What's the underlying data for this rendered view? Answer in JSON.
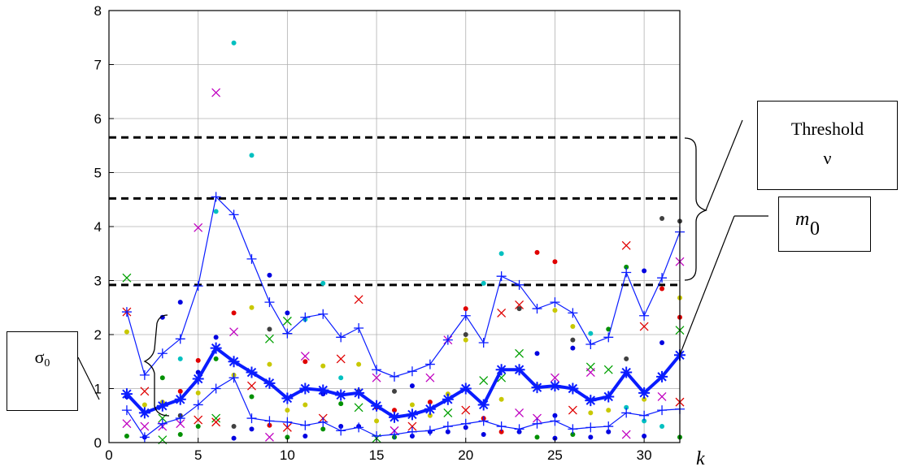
{
  "chart_data": {
    "type": "scatter",
    "title": "",
    "xlabel": "k",
    "ylabel": "",
    "xlim": [
      0,
      32
    ],
    "ylim": [
      0,
      8
    ],
    "xticks": [
      "0",
      "5",
      "10",
      "15",
      "20",
      "25",
      "30"
    ],
    "yticks": [
      "0",
      "1",
      "2",
      "3",
      "4",
      "5",
      "6",
      "7",
      "8"
    ],
    "grid": true,
    "thresholds": [
      5.65,
      4.52,
      2.92
    ],
    "series": [
      {
        "style": "bold-blue-asterisk",
        "x": [
          1,
          2,
          3,
          4,
          5,
          6,
          7,
          8,
          9,
          10,
          11,
          12,
          13,
          14,
          15,
          16,
          17,
          18,
          19,
          20,
          21,
          22,
          23,
          24,
          25,
          26,
          27,
          28,
          29,
          30,
          31,
          32
        ],
        "values": [
          0.9,
          0.55,
          0.68,
          0.8,
          1.18,
          1.75,
          1.5,
          1.3,
          1.1,
          0.82,
          1.0,
          0.97,
          0.88,
          0.92,
          0.68,
          0.47,
          0.52,
          0.62,
          0.8,
          1.0,
          0.7,
          1.35,
          1.35,
          1.02,
          1.05,
          1.0,
          0.78,
          0.85,
          1.3,
          0.92,
          1.22,
          1.62
        ]
      },
      {
        "style": "thin-blue-plus-upper",
        "x": [
          1,
          2,
          3,
          4,
          5,
          6,
          7,
          8,
          9,
          10,
          11,
          12,
          13,
          14,
          15,
          16,
          17,
          18,
          19,
          20,
          21,
          22,
          23,
          24,
          25,
          26,
          27,
          28,
          29,
          30,
          31,
          32
        ],
        "values": [
          2.42,
          1.25,
          1.65,
          1.92,
          2.9,
          4.55,
          4.22,
          3.4,
          2.6,
          2.02,
          2.32,
          2.38,
          1.95,
          2.12,
          1.35,
          1.22,
          1.32,
          1.45,
          1.9,
          2.35,
          1.85,
          3.08,
          2.92,
          2.48,
          2.6,
          2.4,
          1.82,
          1.95,
          3.15,
          2.35,
          3.05,
          3.9
        ]
      },
      {
        "style": "thin-blue-plus-lower",
        "x": [
          1,
          2,
          3,
          4,
          5,
          6,
          7,
          8,
          9,
          10,
          11,
          12,
          13,
          14,
          15,
          16,
          17,
          18,
          19,
          20,
          21,
          22,
          23,
          24,
          25,
          26,
          27,
          28,
          29,
          30,
          31,
          32
        ],
        "values": [
          0.6,
          0.1,
          0.35,
          0.45,
          0.7,
          1.0,
          1.2,
          0.45,
          0.4,
          0.38,
          0.32,
          0.38,
          0.22,
          0.28,
          0.12,
          0.15,
          0.2,
          0.22,
          0.3,
          0.35,
          0.4,
          0.3,
          0.25,
          0.35,
          0.4,
          0.25,
          0.28,
          0.3,
          0.55,
          0.5,
          0.6,
          0.62
        ]
      }
    ],
    "scatter_points": [
      {
        "x": 1,
        "y": 3.05,
        "m": "x",
        "c": "#00a000"
      },
      {
        "x": 1,
        "y": 2.42,
        "m": "x",
        "c": "#e00000"
      },
      {
        "x": 1,
        "y": 2.05,
        "m": "d",
        "c": "#c8c800"
      },
      {
        "x": 1,
        "y": 0.85,
        "m": "d",
        "c": "#0000e0"
      },
      {
        "x": 1,
        "y": 0.35,
        "m": "x",
        "c": "#c000c0"
      },
      {
        "x": 1,
        "y": 0.12,
        "m": "d",
        "c": "#009000"
      },
      {
        "x": 2,
        "y": 0.95,
        "m": "x",
        "c": "#e00000"
      },
      {
        "x": 2,
        "y": 0.7,
        "m": "d",
        "c": "#c8c800"
      },
      {
        "x": 2,
        "y": 0.55,
        "m": "d",
        "c": "#404040"
      },
      {
        "x": 2,
        "y": 0.3,
        "m": "x",
        "c": "#c000c0"
      },
      {
        "x": 2,
        "y": 0.1,
        "m": "d",
        "c": "#0000e0"
      },
      {
        "x": 3,
        "y": 2.32,
        "m": "d",
        "c": "#0000e0"
      },
      {
        "x": 3,
        "y": 1.2,
        "m": "d",
        "c": "#009000"
      },
      {
        "x": 3,
        "y": 0.75,
        "m": "d",
        "c": "#c8c800"
      },
      {
        "x": 3,
        "y": 0.45,
        "m": "x",
        "c": "#00a000"
      },
      {
        "x": 3,
        "y": 0.3,
        "m": "x",
        "c": "#c000c0"
      },
      {
        "x": 3,
        "y": 0.05,
        "m": "x",
        "c": "#00a000"
      },
      {
        "x": 4,
        "y": 2.6,
        "m": "d",
        "c": "#0000e0"
      },
      {
        "x": 4,
        "y": 1.55,
        "m": "d",
        "c": "#00c0c0"
      },
      {
        "x": 4,
        "y": 0.95,
        "m": "d",
        "c": "#e00000"
      },
      {
        "x": 4,
        "y": 0.5,
        "m": "d",
        "c": "#404040"
      },
      {
        "x": 4,
        "y": 0.35,
        "m": "x",
        "c": "#c000c0"
      },
      {
        "x": 4,
        "y": 0.15,
        "m": "d",
        "c": "#009000"
      },
      {
        "x": 5,
        "y": 3.98,
        "m": "x",
        "c": "#c000c0"
      },
      {
        "x": 5,
        "y": 1.52,
        "m": "d",
        "c": "#e00000"
      },
      {
        "x": 5,
        "y": 1.3,
        "m": "d",
        "c": "#0000e0"
      },
      {
        "x": 5,
        "y": 0.92,
        "m": "d",
        "c": "#c8c800"
      },
      {
        "x": 5,
        "y": 0.42,
        "m": "x",
        "c": "#e00000"
      },
      {
        "x": 5,
        "y": 0.3,
        "m": "d",
        "c": "#009000"
      },
      {
        "x": 6,
        "y": 6.48,
        "m": "x",
        "c": "#c000c0"
      },
      {
        "x": 6,
        "y": 4.28,
        "m": "d",
        "c": "#00c0c0"
      },
      {
        "x": 6,
        "y": 1.95,
        "m": "d",
        "c": "#0000e0"
      },
      {
        "x": 6,
        "y": 1.55,
        "m": "d",
        "c": "#009000"
      },
      {
        "x": 6,
        "y": 0.45,
        "m": "x",
        "c": "#00a000"
      },
      {
        "x": 6,
        "y": 0.38,
        "m": "x",
        "c": "#e00000"
      },
      {
        "x": 7,
        "y": 7.4,
        "m": "d",
        "c": "#00c0c0"
      },
      {
        "x": 7,
        "y": 2.4,
        "m": "d",
        "c": "#e00000"
      },
      {
        "x": 7,
        "y": 2.05,
        "m": "x",
        "c": "#c000c0"
      },
      {
        "x": 7,
        "y": 1.25,
        "m": "d",
        "c": "#c8c800"
      },
      {
        "x": 7,
        "y": 0.3,
        "m": "d",
        "c": "#404040"
      },
      {
        "x": 7,
        "y": 0.08,
        "m": "d",
        "c": "#0000e0"
      },
      {
        "x": 8,
        "y": 5.32,
        "m": "d",
        "c": "#00c0c0"
      },
      {
        "x": 8,
        "y": 2.5,
        "m": "d",
        "c": "#c8c800"
      },
      {
        "x": 8,
        "y": 1.05,
        "m": "x",
        "c": "#e00000"
      },
      {
        "x": 8,
        "y": 0.85,
        "m": "d",
        "c": "#009000"
      },
      {
        "x": 8,
        "y": 0.25,
        "m": "d",
        "c": "#0000e0"
      },
      {
        "x": 9,
        "y": 3.1,
        "m": "d",
        "c": "#0000e0"
      },
      {
        "x": 9,
        "y": 2.1,
        "m": "d",
        "c": "#404040"
      },
      {
        "x": 9,
        "y": 1.45,
        "m": "d",
        "c": "#c8c800"
      },
      {
        "x": 9,
        "y": 1.92,
        "m": "x",
        "c": "#00a000"
      },
      {
        "x": 9,
        "y": 0.32,
        "m": "d",
        "c": "#e00000"
      },
      {
        "x": 9,
        "y": 0.1,
        "m": "x",
        "c": "#c000c0"
      },
      {
        "x": 10,
        "y": 2.4,
        "m": "d",
        "c": "#0000e0"
      },
      {
        "x": 10,
        "y": 2.25,
        "m": "x",
        "c": "#00a000"
      },
      {
        "x": 10,
        "y": 0.6,
        "m": "d",
        "c": "#c8c800"
      },
      {
        "x": 10,
        "y": 0.28,
        "m": "x",
        "c": "#e00000"
      },
      {
        "x": 10,
        "y": 0.1,
        "m": "d",
        "c": "#009000"
      },
      {
        "x": 11,
        "y": 2.28,
        "m": "d",
        "c": "#00c0c0"
      },
      {
        "x": 11,
        "y": 1.6,
        "m": "x",
        "c": "#c000c0"
      },
      {
        "x": 11,
        "y": 1.5,
        "m": "d",
        "c": "#e00000"
      },
      {
        "x": 11,
        "y": 0.7,
        "m": "d",
        "c": "#c8c800"
      },
      {
        "x": 11,
        "y": 0.12,
        "m": "d",
        "c": "#0000e0"
      },
      {
        "x": 12,
        "y": 2.95,
        "m": "d",
        "c": "#00c0c0"
      },
      {
        "x": 12,
        "y": 1.42,
        "m": "d",
        "c": "#c8c800"
      },
      {
        "x": 12,
        "y": 0.9,
        "m": "d",
        "c": "#0000e0"
      },
      {
        "x": 12,
        "y": 0.45,
        "m": "x",
        "c": "#e00000"
      },
      {
        "x": 12,
        "y": 0.25,
        "m": "d",
        "c": "#009000"
      },
      {
        "x": 13,
        "y": 1.55,
        "m": "x",
        "c": "#e00000"
      },
      {
        "x": 13,
        "y": 1.2,
        "m": "d",
        "c": "#00c0c0"
      },
      {
        "x": 13,
        "y": 0.72,
        "m": "d",
        "c": "#009000"
      },
      {
        "x": 13,
        "y": 0.3,
        "m": "d",
        "c": "#0000e0"
      },
      {
        "x": 14,
        "y": 2.65,
        "m": "x",
        "c": "#e00000"
      },
      {
        "x": 14,
        "y": 1.45,
        "m": "d",
        "c": "#c8c800"
      },
      {
        "x": 14,
        "y": 0.95,
        "m": "d",
        "c": "#404040"
      },
      {
        "x": 14,
        "y": 0.65,
        "m": "x",
        "c": "#00a000"
      },
      {
        "x": 14,
        "y": 0.3,
        "m": "d",
        "c": "#0000e0"
      },
      {
        "x": 15,
        "y": 1.2,
        "m": "x",
        "c": "#c000c0"
      },
      {
        "x": 15,
        "y": 0.65,
        "m": "d",
        "c": "#e00000"
      },
      {
        "x": 15,
        "y": 0.4,
        "m": "d",
        "c": "#c8c800"
      },
      {
        "x": 15,
        "y": 0.08,
        "m": "x",
        "c": "#00a000"
      },
      {
        "x": 16,
        "y": 0.95,
        "m": "d",
        "c": "#404040"
      },
      {
        "x": 16,
        "y": 0.6,
        "m": "d",
        "c": "#e00000"
      },
      {
        "x": 16,
        "y": 0.22,
        "m": "x",
        "c": "#c000c0"
      },
      {
        "x": 16,
        "y": 0.1,
        "m": "d",
        "c": "#009000"
      },
      {
        "x": 17,
        "y": 1.05,
        "m": "d",
        "c": "#0000e0"
      },
      {
        "x": 17,
        "y": 0.7,
        "m": "d",
        "c": "#c8c800"
      },
      {
        "x": 17,
        "y": 0.3,
        "m": "x",
        "c": "#e00000"
      },
      {
        "x": 17,
        "y": 0.12,
        "m": "d",
        "c": "#0000e0"
      },
      {
        "x": 18,
        "y": 1.2,
        "m": "x",
        "c": "#c000c0"
      },
      {
        "x": 18,
        "y": 0.75,
        "m": "d",
        "c": "#e00000"
      },
      {
        "x": 18,
        "y": 0.5,
        "m": "d",
        "c": "#c8c800"
      },
      {
        "x": 18,
        "y": 0.2,
        "m": "d",
        "c": "#0000e0"
      },
      {
        "x": 19,
        "y": 1.9,
        "m": "x",
        "c": "#c000c0"
      },
      {
        "x": 19,
        "y": 0.9,
        "m": "d",
        "c": "#c8c800"
      },
      {
        "x": 19,
        "y": 0.55,
        "m": "x",
        "c": "#00a000"
      },
      {
        "x": 19,
        "y": 0.2,
        "m": "d",
        "c": "#0000e0"
      },
      {
        "x": 20,
        "y": 2.48,
        "m": "d",
        "c": "#e00000"
      },
      {
        "x": 20,
        "y": 2.0,
        "m": "d",
        "c": "#404040"
      },
      {
        "x": 20,
        "y": 1.9,
        "m": "d",
        "c": "#c8c800"
      },
      {
        "x": 20,
        "y": 0.6,
        "m": "x",
        "c": "#e00000"
      },
      {
        "x": 20,
        "y": 0.28,
        "m": "d",
        "c": "#0000e0"
      },
      {
        "x": 21,
        "y": 2.95,
        "m": "d",
        "c": "#00c0c0"
      },
      {
        "x": 21,
        "y": 1.15,
        "m": "x",
        "c": "#00a000"
      },
      {
        "x": 21,
        "y": 0.45,
        "m": "d",
        "c": "#e00000"
      },
      {
        "x": 21,
        "y": 0.15,
        "m": "d",
        "c": "#0000e0"
      },
      {
        "x": 22,
        "y": 3.5,
        "m": "d",
        "c": "#00c0c0"
      },
      {
        "x": 22,
        "y": 2.4,
        "m": "x",
        "c": "#e00000"
      },
      {
        "x": 22,
        "y": 1.2,
        "m": "x",
        "c": "#00a000"
      },
      {
        "x": 22,
        "y": 0.8,
        "m": "d",
        "c": "#c8c800"
      },
      {
        "x": 22,
        "y": 0.2,
        "m": "d",
        "c": "#e00000"
      },
      {
        "x": 23,
        "y": 2.55,
        "m": "x",
        "c": "#e00000"
      },
      {
        "x": 23,
        "y": 2.48,
        "m": "d",
        "c": "#404040"
      },
      {
        "x": 23,
        "y": 1.65,
        "m": "x",
        "c": "#00a000"
      },
      {
        "x": 23,
        "y": 0.55,
        "m": "x",
        "c": "#c000c0"
      },
      {
        "x": 23,
        "y": 0.2,
        "m": "d",
        "c": "#0000e0"
      },
      {
        "x": 24,
        "y": 3.52,
        "m": "d",
        "c": "#e00000"
      },
      {
        "x": 24,
        "y": 1.65,
        "m": "d",
        "c": "#0000e0"
      },
      {
        "x": 24,
        "y": 1.05,
        "m": "d",
        "c": "#c8c800"
      },
      {
        "x": 24,
        "y": 0.45,
        "m": "x",
        "c": "#c000c0"
      },
      {
        "x": 24,
        "y": 0.1,
        "m": "d",
        "c": "#009000"
      },
      {
        "x": 25,
        "y": 3.35,
        "m": "d",
        "c": "#e00000"
      },
      {
        "x": 25,
        "y": 2.45,
        "m": "d",
        "c": "#c8c800"
      },
      {
        "x": 25,
        "y": 1.2,
        "m": "x",
        "c": "#c000c0"
      },
      {
        "x": 25,
        "y": 0.5,
        "m": "d",
        "c": "#0000e0"
      },
      {
        "x": 25,
        "y": 0.08,
        "m": "d",
        "c": "#0000e0"
      },
      {
        "x": 26,
        "y": 2.15,
        "m": "d",
        "c": "#c8c800"
      },
      {
        "x": 26,
        "y": 1.9,
        "m": "d",
        "c": "#404040"
      },
      {
        "x": 26,
        "y": 1.75,
        "m": "d",
        "c": "#0000e0"
      },
      {
        "x": 26,
        "y": 0.6,
        "m": "x",
        "c": "#e00000"
      },
      {
        "x": 26,
        "y": 0.15,
        "m": "d",
        "c": "#009000"
      },
      {
        "x": 27,
        "y": 2.02,
        "m": "d",
        "c": "#00c0c0"
      },
      {
        "x": 27,
        "y": 1.4,
        "m": "x",
        "c": "#00a000"
      },
      {
        "x": 27,
        "y": 1.3,
        "m": "x",
        "c": "#c000c0"
      },
      {
        "x": 27,
        "y": 0.55,
        "m": "d",
        "c": "#c8c800"
      },
      {
        "x": 27,
        "y": 0.1,
        "m": "d",
        "c": "#0000e0"
      },
      {
        "x": 28,
        "y": 2.1,
        "m": "d",
        "c": "#009000"
      },
      {
        "x": 28,
        "y": 1.35,
        "m": "x",
        "c": "#00a000"
      },
      {
        "x": 28,
        "y": 0.6,
        "m": "d",
        "c": "#c8c800"
      },
      {
        "x": 28,
        "y": 0.2,
        "m": "d",
        "c": "#0000e0"
      },
      {
        "x": 29,
        "y": 3.65,
        "m": "x",
        "c": "#e00000"
      },
      {
        "x": 29,
        "y": 3.25,
        "m": "d",
        "c": "#009000"
      },
      {
        "x": 29,
        "y": 1.55,
        "m": "d",
        "c": "#404040"
      },
      {
        "x": 29,
        "y": 0.65,
        "m": "d",
        "c": "#00c0c0"
      },
      {
        "x": 29,
        "y": 0.15,
        "m": "x",
        "c": "#c000c0"
      },
      {
        "x": 30,
        "y": 3.18,
        "m": "d",
        "c": "#0000e0"
      },
      {
        "x": 30,
        "y": 2.15,
        "m": "x",
        "c": "#e00000"
      },
      {
        "x": 30,
        "y": 0.8,
        "m": "d",
        "c": "#c8c800"
      },
      {
        "x": 30,
        "y": 0.4,
        "m": "d",
        "c": "#00c0c0"
      },
      {
        "x": 30,
        "y": 0.12,
        "m": "d",
        "c": "#0000e0"
      },
      {
        "x": 31,
        "y": 4.15,
        "m": "d",
        "c": "#404040"
      },
      {
        "x": 31,
        "y": 2.85,
        "m": "d",
        "c": "#e00000"
      },
      {
        "x": 31,
        "y": 1.85,
        "m": "d",
        "c": "#0000e0"
      },
      {
        "x": 31,
        "y": 0.85,
        "m": "x",
        "c": "#c000c0"
      },
      {
        "x": 31,
        "y": 0.3,
        "m": "d",
        "c": "#00c0c0"
      },
      {
        "x": 32,
        "y": 4.1,
        "m": "d",
        "c": "#404040"
      },
      {
        "x": 32,
        "y": 3.35,
        "m": "x",
        "c": "#c000c0"
      },
      {
        "x": 32,
        "y": 2.68,
        "m": "d",
        "c": "#c8c800"
      },
      {
        "x": 32,
        "y": 2.32,
        "m": "d",
        "c": "#e00000"
      },
      {
        "x": 32,
        "y": 2.08,
        "m": "x",
        "c": "#00a000"
      },
      {
        "x": 32,
        "y": 0.75,
        "m": "x",
        "c": "#e00000"
      },
      {
        "x": 32,
        "y": 0.1,
        "m": "d",
        "c": "#009000"
      }
    ]
  },
  "annotations": {
    "threshold_label": "Threshold",
    "threshold_symbol": "ν",
    "m0_letter": "m",
    "m0_sub": "0",
    "sigma_letter": "σ",
    "sigma_sub": "0"
  }
}
